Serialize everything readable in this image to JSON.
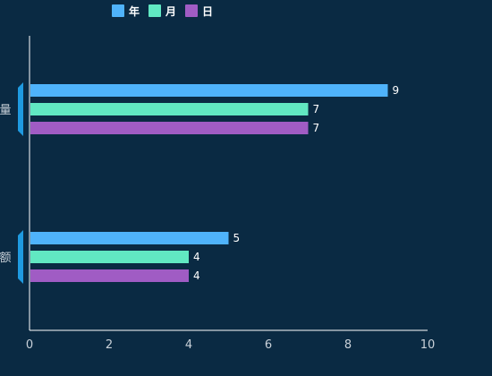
{
  "colors": {
    "background": "#0a2a43",
    "axis": "#ffffff",
    "tick_text": "#c9d1d9",
    "label_text": "#ffffff",
    "category_marker": "#1f9ae0"
  },
  "chart_data": {
    "type": "bar",
    "orientation": "horizontal",
    "categories": [
      "量",
      "额"
    ],
    "series": [
      {
        "name": "年",
        "color": "#4fb3fb",
        "values": [
          9,
          5
        ]
      },
      {
        "name": "月",
        "color": "#61e8c2",
        "values": [
          7,
          4
        ]
      },
      {
        "name": "日",
        "color": "#a05cc4",
        "values": [
          7,
          4
        ]
      }
    ],
    "xlim": [
      0,
      10
    ],
    "xticks": [
      0,
      2,
      4,
      6,
      8,
      10
    ],
    "grid": false,
    "legend_position": "top-left",
    "data_labels": true
  }
}
